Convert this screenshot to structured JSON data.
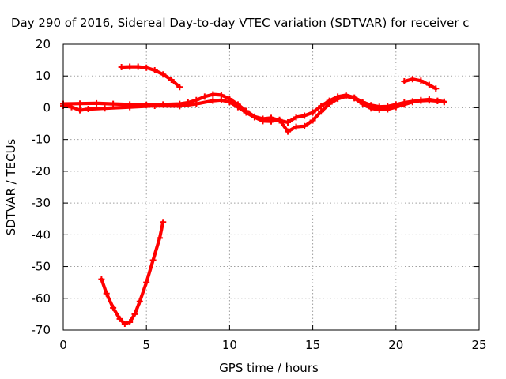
{
  "chart_data": {
    "type": "scatter",
    "title": "Day 290 of 2016, Sidereal Day-to-day VTEC variation (SDTVAR) for receiver c",
    "xlabel": "GPS time / hours",
    "ylabel": "SDTVAR / TECUs",
    "xlim": [
      0,
      25
    ],
    "ylim": [
      -70,
      20
    ],
    "xticks": [
      0,
      5,
      10,
      15,
      20,
      25
    ],
    "yticks": [
      20,
      10,
      0,
      -10,
      -20,
      -30,
      -40,
      -50,
      -60,
      -70
    ],
    "grid": true,
    "legend": "none",
    "series_color": "#ff0000",
    "series": [
      {
        "values": [
          [
            0.0,
            1.2
          ],
          [
            1.0,
            1.3
          ],
          [
            2.0,
            1.4
          ],
          [
            3.0,
            1.2
          ],
          [
            4.0,
            1.0
          ],
          [
            5.0,
            0.9
          ],
          [
            6.0,
            1.0
          ],
          [
            7.0,
            1.2
          ],
          [
            7.5,
            1.6
          ],
          [
            8.0,
            2.4
          ],
          [
            8.5,
            3.5
          ],
          [
            9.0,
            4.2
          ],
          [
            9.5,
            4.0
          ],
          [
            10.0,
            2.8
          ],
          [
            10.5,
            1.0
          ],
          [
            11.0,
            -1.0
          ],
          [
            11.5,
            -2.8
          ],
          [
            12.0,
            -3.5
          ],
          [
            12.5,
            -3.2
          ],
          [
            13.0,
            -4.0
          ],
          [
            13.5,
            -4.6
          ],
          [
            14.0,
            -3.0
          ],
          [
            14.5,
            -2.5
          ],
          [
            15.0,
            -1.5
          ],
          [
            15.5,
            0.5
          ],
          [
            16.0,
            2.2
          ],
          [
            16.5,
            3.5
          ],
          [
            17.0,
            4.0
          ],
          [
            17.5,
            3.2
          ],
          [
            18.0,
            1.8
          ],
          [
            18.5,
            0.8
          ],
          [
            19.0,
            0.3
          ],
          [
            19.5,
            0.4
          ],
          [
            20.0,
            1.0
          ],
          [
            20.5,
            1.6
          ],
          [
            21.0,
            2.0
          ],
          [
            21.5,
            2.2
          ],
          [
            22.0,
            2.3
          ],
          [
            22.5,
            2.1
          ],
          [
            22.9,
            1.8
          ]
        ]
      },
      {
        "values": [
          [
            0.0,
            0.6
          ],
          [
            0.5,
            0.2
          ],
          [
            1.0,
            -0.8
          ],
          [
            1.5,
            -0.4
          ],
          [
            2.5,
            -0.2
          ],
          [
            4.0,
            0.2
          ],
          [
            5.5,
            0.6
          ],
          [
            7.0,
            0.5
          ],
          [
            8.0,
            1.2
          ],
          [
            9.0,
            2.2
          ],
          [
            9.5,
            2.4
          ],
          [
            10.0,
            1.8
          ],
          [
            10.5,
            0.2
          ],
          [
            11.0,
            -1.5
          ],
          [
            11.5,
            -3.0
          ],
          [
            12.0,
            -4.2
          ],
          [
            12.5,
            -4.3
          ],
          [
            13.0,
            -3.8
          ],
          [
            13.5,
            -7.5
          ],
          [
            14.0,
            -6.0
          ],
          [
            14.5,
            -5.8
          ],
          [
            15.0,
            -4.0
          ],
          [
            15.5,
            -1.2
          ],
          [
            16.0,
            1.2
          ],
          [
            16.5,
            2.8
          ],
          [
            17.0,
            3.6
          ],
          [
            17.5,
            3.0
          ],
          [
            18.0,
            1.2
          ],
          [
            18.5,
            -0.2
          ],
          [
            19.0,
            -0.6
          ],
          [
            19.5,
            -0.5
          ],
          [
            20.0,
            0.2
          ],
          [
            20.5,
            1.0
          ],
          [
            21.0,
            1.8
          ],
          [
            21.5,
            2.4
          ],
          [
            22.0,
            2.6
          ],
          [
            22.5,
            2.2
          ],
          [
            22.9,
            1.9
          ]
        ]
      },
      {
        "values": [
          [
            3.5,
            12.8
          ],
          [
            4.0,
            12.9
          ],
          [
            4.5,
            12.9
          ],
          [
            5.0,
            12.6
          ],
          [
            5.5,
            11.8
          ],
          [
            6.0,
            10.5
          ],
          [
            6.5,
            8.8
          ],
          [
            7.0,
            6.5
          ]
        ]
      },
      {
        "values": [
          [
            20.5,
            8.3
          ],
          [
            21.0,
            9.0
          ],
          [
            21.5,
            8.5
          ],
          [
            22.0,
            7.2
          ],
          [
            22.4,
            6.0
          ]
        ]
      },
      {
        "values": [
          [
            2.3,
            -54.0
          ],
          [
            2.6,
            -58.5
          ],
          [
            3.0,
            -63.0
          ],
          [
            3.4,
            -66.5
          ],
          [
            3.7,
            -68.0
          ],
          [
            4.0,
            -67.5
          ],
          [
            4.3,
            -65.0
          ],
          [
            4.6,
            -61.0
          ],
          [
            5.0,
            -55.0
          ],
          [
            5.4,
            -48.0
          ],
          [
            5.8,
            -41.0
          ],
          [
            6.0,
            -36.0
          ]
        ]
      }
    ]
  }
}
